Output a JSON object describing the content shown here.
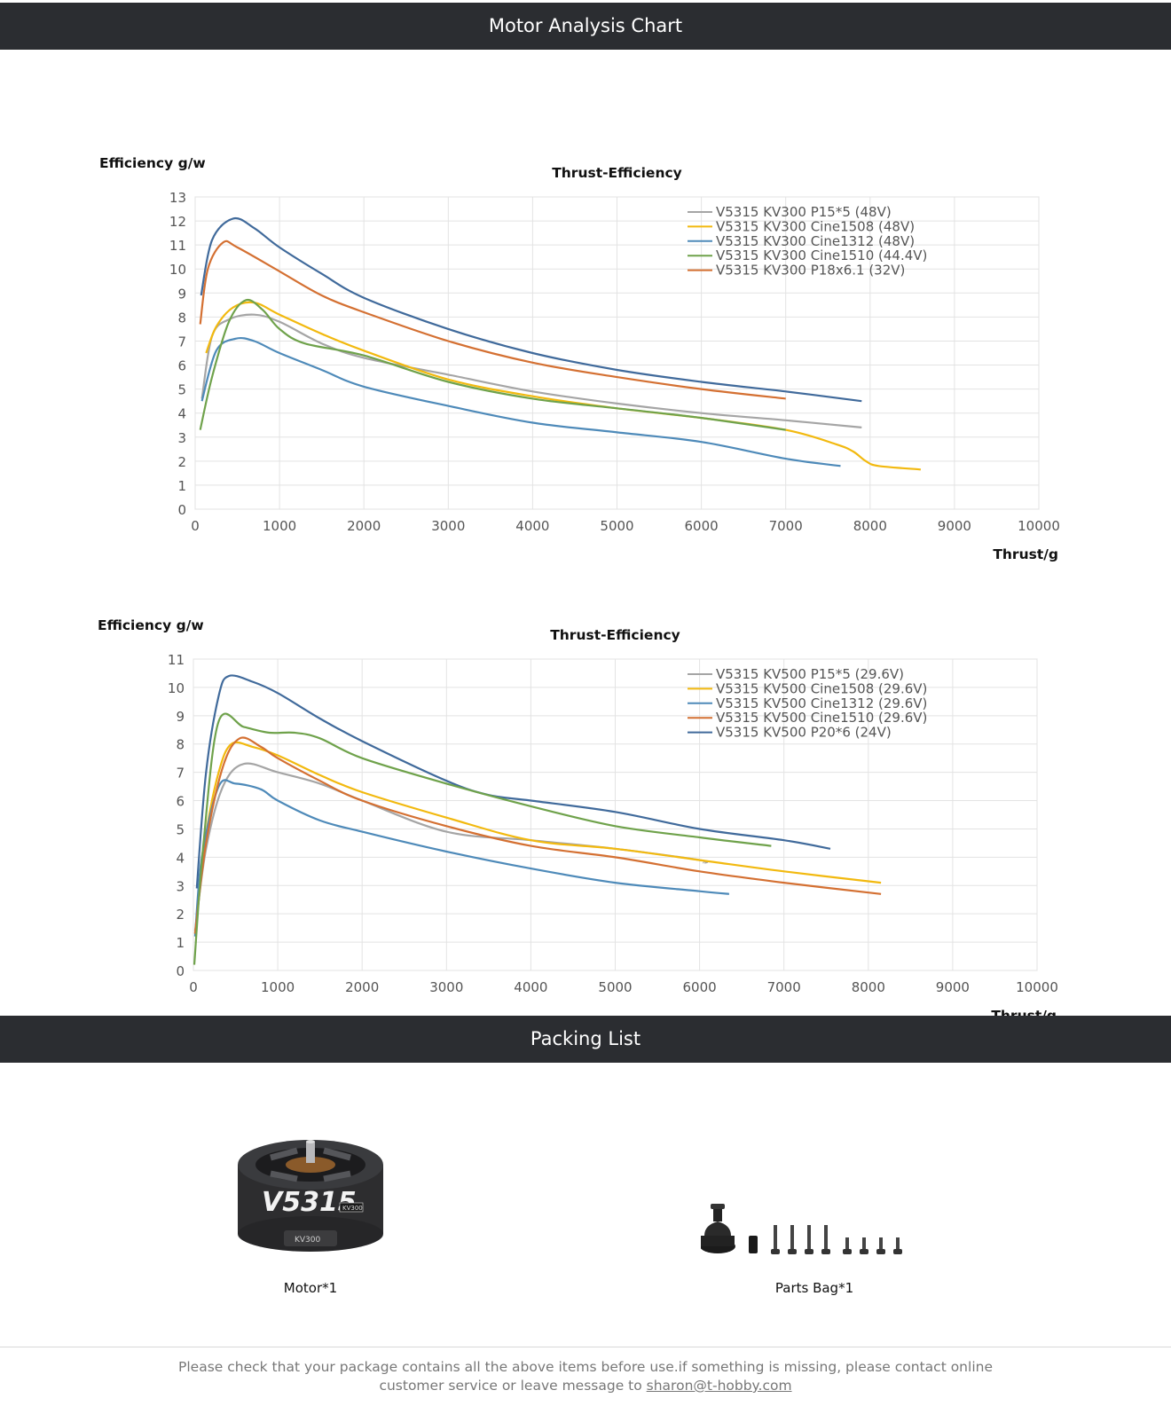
{
  "sections": {
    "chart_section_title": "Motor Analysis Chart",
    "packing_section_title": "Packing List"
  },
  "chart_data": [
    {
      "type": "line",
      "title": "Thrust-Efficiency",
      "xlabel": "Thrust/g",
      "ylabel": "Efficiency g/w",
      "xlim": [
        0,
        10000
      ],
      "ylim": [
        0,
        13
      ],
      "xticks": [
        0,
        1000,
        2000,
        3000,
        4000,
        5000,
        6000,
        7000,
        8000,
        9000,
        10000
      ],
      "yticks": [
        0,
        1,
        2,
        3,
        4,
        5,
        6,
        7,
        8,
        9,
        10,
        11,
        12,
        13
      ],
      "grid": true,
      "legend_position": "top-right",
      "series": [
        {
          "name": "V5315 KV300 P15*5  (48V)",
          "color": "#a5a5a5",
          "x": [
            80,
            200,
            400,
            700,
            1000,
            1500,
            2000,
            3000,
            4000,
            5000,
            6000,
            7000,
            7900
          ],
          "y": [
            4.6,
            7.2,
            7.9,
            8.1,
            7.8,
            6.9,
            6.3,
            5.6,
            4.9,
            4.4,
            4.0,
            3.7,
            3.4
          ]
        },
        {
          "name": "V5315 KV300 Cine1508  (48V)",
          "color": "#f2b90f",
          "x": [
            130,
            250,
            450,
            700,
            1000,
            1500,
            2000,
            3000,
            4000,
            5000,
            6000,
            7000,
            7600,
            7800,
            7950,
            8100,
            8600
          ],
          "y": [
            6.5,
            7.6,
            8.4,
            8.6,
            8.1,
            7.3,
            6.6,
            5.4,
            4.7,
            4.2,
            3.8,
            3.3,
            2.7,
            2.4,
            2.0,
            1.8,
            1.65
          ]
        },
        {
          "name": "V5315 KV300 Cine1312  (48V)",
          "color": "#4e8ab9",
          "x": [
            80,
            250,
            480,
            700,
            1000,
            1500,
            2000,
            3000,
            4000,
            5000,
            6000,
            7000,
            7650
          ],
          "y": [
            4.5,
            6.6,
            7.1,
            7.0,
            6.5,
            5.8,
            5.1,
            4.3,
            3.6,
            3.2,
            2.8,
            2.1,
            1.8
          ]
        },
        {
          "name": "V5315 KV300 Cine1510  (44.4V)",
          "color": "#6fa24b",
          "x": [
            60,
            200,
            400,
            600,
            800,
            1000,
            1300,
            2000,
            3000,
            4000,
            5000,
            6000,
            7000
          ],
          "y": [
            3.3,
            5.5,
            7.8,
            8.7,
            8.3,
            7.5,
            6.9,
            6.4,
            5.3,
            4.6,
            4.2,
            3.8,
            3.3
          ]
        },
        {
          "name": "V5315 KV300 P18x6.1  (32V)",
          "color": "#d47032",
          "x": [
            60,
            150,
            330,
            500,
            1000,
            1500,
            2000,
            3000,
            4000,
            5000,
            6000,
            7000
          ],
          "y": [
            7.7,
            10.0,
            11.1,
            10.9,
            9.9,
            8.9,
            8.2,
            7.0,
            6.1,
            5.5,
            5.0,
            4.6
          ]
        },
        {
          "name": "",
          "color": "#406a9b",
          "x": [
            70,
            200,
            450,
            700,
            1000,
            1500,
            2000,
            3000,
            4000,
            5000,
            6000,
            7000,
            7900
          ],
          "y": [
            8.9,
            11.2,
            12.1,
            11.7,
            10.9,
            9.8,
            8.8,
            7.5,
            6.5,
            5.8,
            5.3,
            4.9,
            4.5
          ]
        }
      ]
    },
    {
      "type": "line",
      "title": "Thrust-Efficiency",
      "xlabel": "Thrust/g",
      "ylabel": "Efficiency g/w",
      "xlim": [
        0,
        10000
      ],
      "ylim": [
        0,
        11
      ],
      "xticks": [
        0,
        1000,
        2000,
        3000,
        4000,
        5000,
        6000,
        7000,
        8000,
        9000,
        10000
      ],
      "yticks": [
        0,
        1,
        2,
        3,
        4,
        5,
        6,
        7,
        8,
        9,
        10,
        11
      ],
      "grid": true,
      "legend_position": "top-right",
      "series": [
        {
          "name": "V5315 KV500 P15*5  (29.6V)",
          "color": "#a5a5a5",
          "x": [
            20,
            150,
            350,
            600,
            1000,
            1500,
            2000,
            3000,
            4000,
            5000,
            6000,
            6050
          ],
          "y": [
            1.4,
            4.3,
            6.5,
            7.3,
            7.0,
            6.6,
            6.0,
            4.9,
            4.6,
            4.3,
            3.9,
            3.8
          ]
        },
        {
          "name": "V5315 KV500 Cine1508  (29.6V)",
          "color": "#f2b90f",
          "x": [
            20,
            150,
            300,
            450,
            700,
            1000,
            1500,
            2000,
            3000,
            4000,
            5000,
            6000,
            7000,
            8150
          ],
          "y": [
            1.3,
            4.8,
            7.0,
            8.0,
            7.9,
            7.6,
            6.9,
            6.3,
            5.4,
            4.6,
            4.3,
            3.9,
            3.5,
            3.1
          ]
        },
        {
          "name": "V5315 KV500 Cine1312  (29.6V)",
          "color": "#4e8ab9",
          "x": [
            20,
            100,
            300,
            500,
            800,
            1000,
            1500,
            2000,
            3000,
            4000,
            5000,
            6000,
            6350
          ],
          "y": [
            1.2,
            4.0,
            6.5,
            6.6,
            6.4,
            6.0,
            5.3,
            4.9,
            4.2,
            3.6,
            3.1,
            2.8,
            2.7
          ]
        },
        {
          "name": "V5315 KV500 Cine1510  (29.6V)",
          "color": "#d47032",
          "x": [
            20,
            150,
            350,
            550,
            800,
            1000,
            1500,
            2000,
            3000,
            4000,
            5000,
            6000,
            7000,
            8150
          ],
          "y": [
            1.3,
            4.5,
            7.2,
            8.2,
            7.9,
            7.5,
            6.7,
            6.0,
            5.1,
            4.4,
            4.0,
            3.5,
            3.1,
            2.7
          ]
        },
        {
          "name": "V5315 KV500 P20*6  (24V)",
          "color": "#406a9b",
          "x": [
            40,
            150,
            300,
            420,
            700,
            1000,
            1500,
            2000,
            3000,
            3500,
            4000,
            5000,
            6000,
            7000,
            7550
          ],
          "y": [
            2.9,
            7.0,
            9.7,
            10.4,
            10.2,
            9.8,
            8.9,
            8.1,
            6.7,
            6.2,
            6.0,
            5.6,
            5.0,
            4.6,
            4.3
          ]
        },
        {
          "name": "",
          "color": "#6fa24b",
          "x": [
            10,
            120,
            300,
            600,
            900,
            1200,
            1500,
            2000,
            3000,
            4000,
            5000,
            6000,
            6850
          ],
          "y": [
            0.2,
            4.5,
            8.8,
            8.6,
            8.4,
            8.4,
            8.2,
            7.5,
            6.6,
            5.8,
            5.1,
            4.7,
            4.4
          ]
        }
      ]
    }
  ],
  "packing": {
    "items": [
      {
        "caption": "Motor*1",
        "icon": "motor-image",
        "motor_text": "V5315",
        "motor_sub": "KV300"
      },
      {
        "caption": "Parts Bag*1",
        "icon": "parts-bag-image"
      }
    ]
  },
  "footer": {
    "line1": "Please check that your package contains all the above items before use.if something is missing, please contact online",
    "line2_prefix": "customer service or leave message to ",
    "email": "sharon@t-hobby.com"
  }
}
